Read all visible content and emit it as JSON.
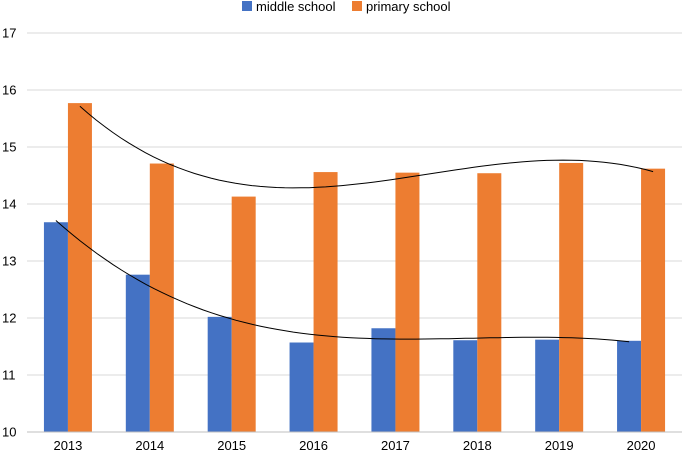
{
  "chart_data": {
    "type": "bar",
    "title": "",
    "xlabel": "",
    "ylabel": "",
    "categories": [
      "2013",
      "2014",
      "2015",
      "2016",
      "2017",
      "2018",
      "2019",
      "2020"
    ],
    "series": [
      {
        "name": "middle school",
        "color": "#4472C4",
        "values": [
          13.68,
          12.76,
          12.02,
          11.57,
          11.82,
          11.61,
          11.62,
          11.6
        ]
      },
      {
        "name": "primary school",
        "color": "#ED7D31",
        "values": [
          15.77,
          14.71,
          14.13,
          14.56,
          14.55,
          14.54,
          14.72,
          14.62
        ]
      }
    ],
    "ylim": [
      10,
      17
    ],
    "yticks": [
      "10",
      "11",
      "12",
      "13",
      "14",
      "15",
      "16",
      "17"
    ],
    "grid": true,
    "legend_position": "top-center",
    "trendlines": [
      {
        "series": "middle school",
        "type": "polynomial",
        "color": "#000000"
      },
      {
        "series": "primary school",
        "type": "polynomial",
        "color": "#000000"
      }
    ]
  }
}
